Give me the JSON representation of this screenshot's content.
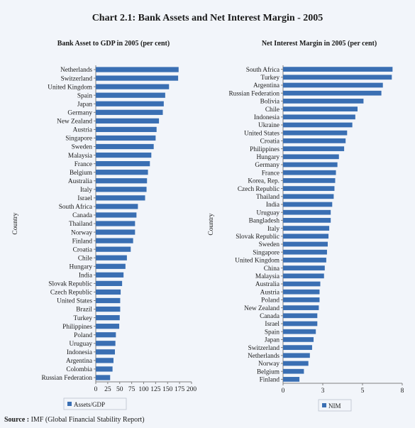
{
  "title": "Chart 2.1: Bank Assets and Net Interest Margin - 2005",
  "source_label": "Source :",
  "source_text": "IMF (Global Financial Stability Report)",
  "colors": {
    "bar": "#3a6fb3",
    "background": "#f2f5fa",
    "axis": "#808080"
  },
  "chart_data": [
    {
      "type": "bar",
      "orientation": "horizontal",
      "title": "Bank Asset to GDP in 2005 (per cent)",
      "ylabel": "Country",
      "xlabel": "",
      "xlim": [
        0,
        200
      ],
      "xticks": [
        "0",
        "25",
        "50",
        "75",
        "100",
        "125",
        "150",
        "175",
        "200"
      ],
      "legend": "Assets/GDP",
      "legend_position": "bottom",
      "categories": [
        "Netherlands",
        "Switzerland",
        "United Kingdom",
        "Spain",
        "Japan",
        "Germany",
        "New Zealand",
        "Austria",
        "Singapore",
        "Sweden",
        "Malaysia",
        "France",
        "Belgium",
        "Australia",
        "Italy",
        "Israel",
        "South Africa",
        "Canada",
        "Thailand",
        "Norway",
        "Finland",
        "Croatia",
        "Chile",
        "Hungary",
        "India",
        "Slovak Republic",
        "Czech Republic",
        "United States",
        "Brazil",
        "Turkey",
        "Philippines",
        "Poland",
        "Uruguay",
        "Indonesia",
        "Argentina",
        "Colombia",
        "Russian Federation"
      ],
      "values": [
        173,
        172,
        153,
        145,
        142,
        140,
        132,
        127,
        125,
        121,
        116,
        113,
        109,
        107,
        106,
        103,
        88,
        85,
        82,
        82,
        78,
        73,
        65,
        62,
        58,
        55,
        52,
        51,
        51,
        50,
        49,
        42,
        41,
        40,
        37,
        35,
        30
      ]
    },
    {
      "type": "bar",
      "orientation": "horizontal",
      "title": "Net Interest Margin in 2005 (per cent)",
      "ylabel": "Country",
      "xlabel": "",
      "xlim": [
        0,
        8
      ],
      "xticks": [
        "0",
        "3",
        "5",
        "8"
      ],
      "legend": "NIM",
      "legend_position": "bottom",
      "categories": [
        "South Africa",
        "Turkey",
        "Argentina",
        "Russian Federation",
        "Bolivia",
        "Chile",
        "Indonesia",
        "Ukraine",
        "United States",
        "Croatia",
        "Philippines",
        "Hungary",
        "Germany",
        "France",
        "Korea, Rep.",
        "Czech Republic",
        "Thailand",
        "India",
        "Uruguay",
        "Bangladesh",
        "Italy",
        "Slovak Republic",
        "Sweden",
        "Singapore",
        "United Kingdom",
        "China",
        "Malaysia",
        "Australia",
        "Austria",
        "Poland",
        "New Zealand",
        "Canada",
        "Israel",
        "Spain",
        "Japan",
        "Switzerland",
        "Netherlands",
        "Norway",
        "Belgium",
        "Finland"
      ],
      "values": [
        7.35,
        7.3,
        6.7,
        6.6,
        5.4,
        5.0,
        4.85,
        4.65,
        4.3,
        4.2,
        4.1,
        3.75,
        3.65,
        3.55,
        3.5,
        3.45,
        3.4,
        3.3,
        3.2,
        3.2,
        3.1,
        3.05,
        3.0,
        2.95,
        2.9,
        2.8,
        2.75,
        2.5,
        2.45,
        2.45,
        2.4,
        2.3,
        2.3,
        2.2,
        2.05,
        1.95,
        1.8,
        1.7,
        1.4,
        1.1
      ]
    }
  ]
}
